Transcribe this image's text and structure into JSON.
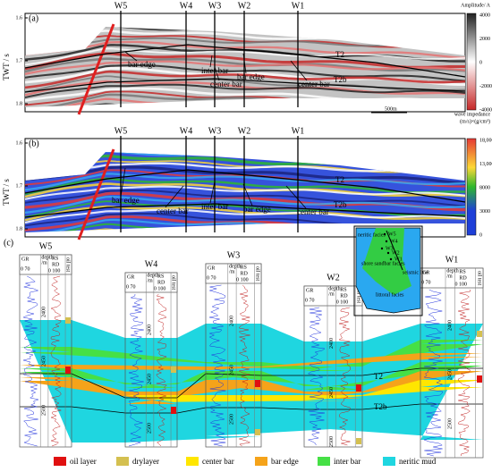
{
  "panel_a": {
    "label": "(a)",
    "axis_title": "TWT / s",
    "yticks": [
      "1.6",
      "1.7",
      "1.8"
    ],
    "wells": [
      "W5",
      "W4",
      "W3",
      "W2",
      "W1"
    ],
    "horizons": [
      "T2",
      "T2b"
    ],
    "annotations": [
      "bar edge",
      "inter bar",
      "center bar",
      "bar edge",
      "center bar"
    ],
    "scale": "500m",
    "colorbar_title": "Amplitude/ A",
    "colorbar_ticks": [
      "4000",
      "2000",
      "0",
      "-2000",
      "-4000"
    ]
  },
  "panel_b": {
    "label": "(b)",
    "axis_title": "TWT / s",
    "yticks": [
      "1.6",
      "1.7",
      "1.8"
    ],
    "wells": [
      "W5",
      "W4",
      "W3",
      "W2",
      "W1"
    ],
    "horizons": [
      "T2",
      "T2b"
    ],
    "annotations": [
      "bar edge",
      "center bar",
      "inter bar",
      "bar edge",
      "center bar"
    ],
    "colorbar_title": "wave impedance",
    "colorbar_unit": "(m/s)×(g/cm³)",
    "colorbar_ticks": [
      "18,000",
      "13,000",
      "8000",
      "3000",
      "0"
    ]
  },
  "panel_c": {
    "label": "(c)",
    "wells": [
      "W5",
      "W4",
      "W3",
      "W2",
      "W1"
    ],
    "track_header": {
      "gr": "GR",
      "gr_range": "0  70",
      "depth": "depth",
      "depth_unit": "/m",
      "rs": "RS",
      "rd": "RD",
      "res_range": "0  100",
      "oil_test": "oil test"
    },
    "depths": [
      "2400",
      "2450",
      "2500"
    ],
    "horizons": [
      "T2",
      "T2b"
    ],
    "map": {
      "neritic": "neritic facies",
      "wells": [
        "W5",
        "W4",
        "W3",
        "W2",
        "W1"
      ],
      "shore": "shore sandbar facies",
      "seismic_line": "seismic line",
      "littoral": "littoral facies"
    }
  },
  "legend": [
    "oil layer",
    "drylayer",
    "center bar",
    "bar edge",
    "inter bar",
    "neritic mud"
  ]
}
